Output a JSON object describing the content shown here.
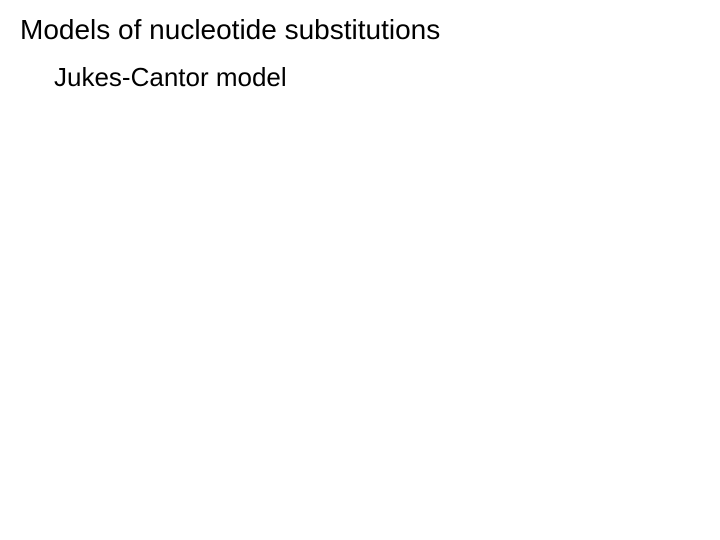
{
  "slide": {
    "title": "Models of nucleotide substitutions",
    "subtitle": "Jukes-Cantor model",
    "background_color": "#ffffff",
    "text_color": "#000000",
    "title_fontsize": 28,
    "subtitle_fontsize": 26,
    "font_family": "Arial"
  }
}
